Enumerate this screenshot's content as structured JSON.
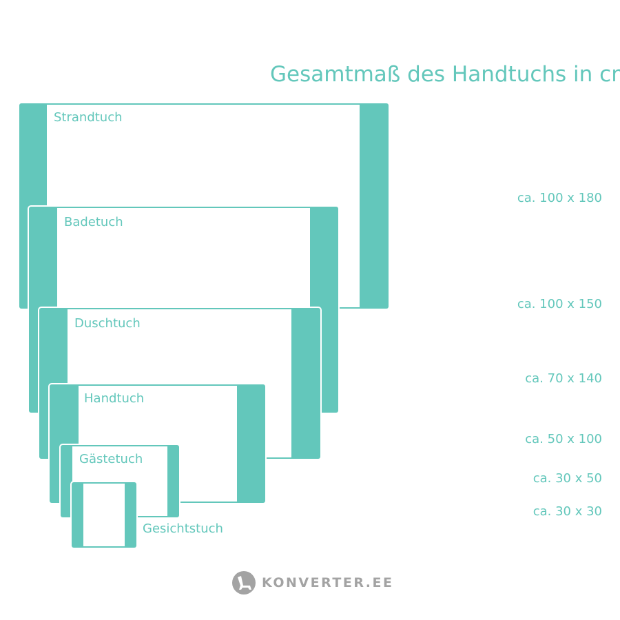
{
  "title": "Gesamtmaß des Handtuchs in cm",
  "colors": {
    "accent": "#63c7bb",
    "logo": "#a3a3a3"
  },
  "towels": [
    {
      "name": "Strandtuch",
      "dimension": "ca. 100 x 180"
    },
    {
      "name": "Badetuch",
      "dimension": "ca. 100 x 150"
    },
    {
      "name": "Duschtuch",
      "dimension": "ca. 70 x 140"
    },
    {
      "name": "Handtuch",
      "dimension": "ca. 50 x 100"
    },
    {
      "name": "Gästetuch",
      "dimension": "ca. 30 x 50"
    },
    {
      "name": "Gesichtstuch",
      "dimension": "ca. 30 x 30"
    }
  ],
  "logo": {
    "text": "KONVERTER.EE",
    "icon": "chair-icon"
  }
}
